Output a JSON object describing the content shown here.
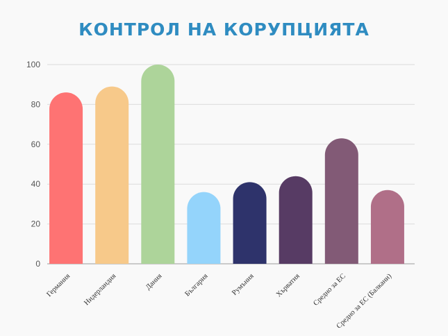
{
  "chart_data": {
    "type": "bar",
    "title": "КОНТРОЛ НА КОРУПЦИЯТА",
    "xlabel": "",
    "ylabel": "",
    "ylim": [
      0,
      100
    ],
    "yticks": [
      0,
      20,
      40,
      60,
      80,
      100
    ],
    "grid": true,
    "categories": [
      "Германия",
      "Нидерландия",
      "Дания",
      "България",
      "Румъния",
      "Хърватия",
      "Средно за ЕС",
      "Средно за ЕС (Балкани)"
    ],
    "values": [
      86,
      89,
      100,
      36,
      41,
      44,
      63,
      37
    ],
    "colors": [
      "#fe7373",
      "#f7c98a",
      "#add49a",
      "#94d4fb",
      "#2e336b",
      "#573b64",
      "#825a76",
      "#b06f88"
    ]
  }
}
